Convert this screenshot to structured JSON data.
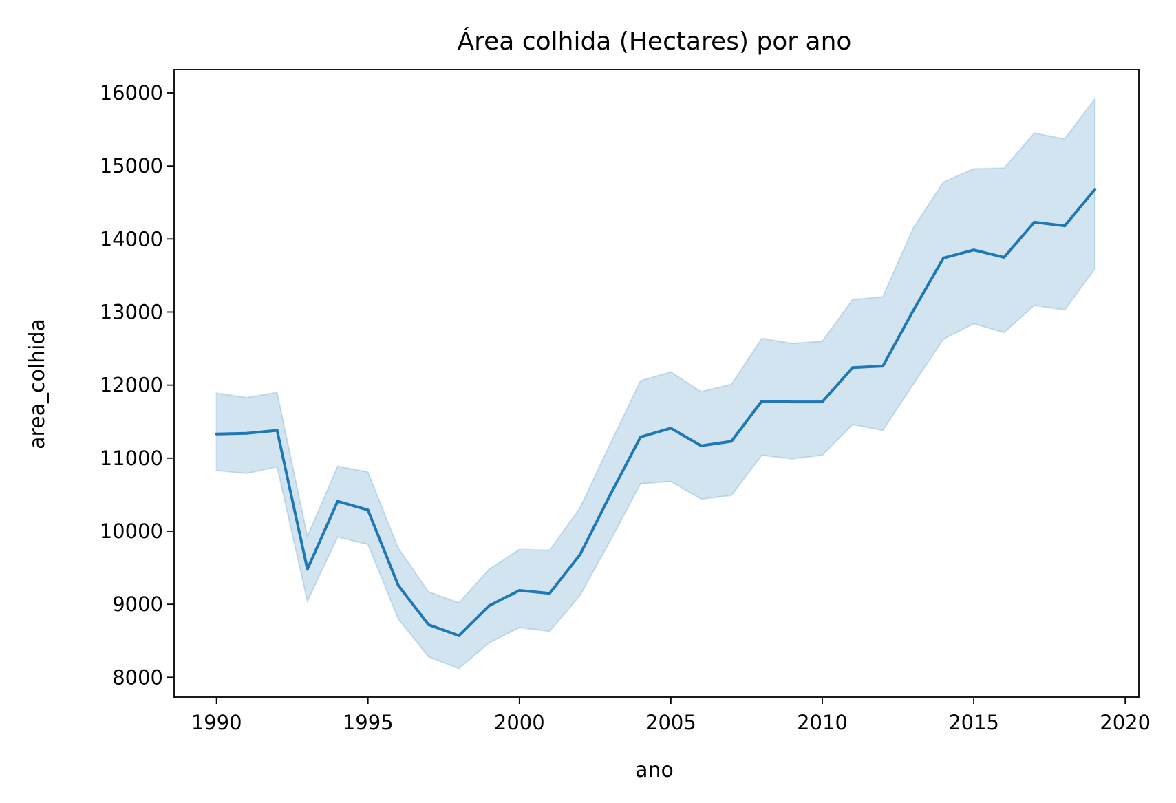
{
  "chart_data": {
    "type": "line",
    "title": "Área colhida (Hectares) por ano",
    "xlabel": "ano",
    "ylabel": "area_colhida",
    "xlim": [
      1988.6,
      2020.45
    ],
    "ylim": [
      7730,
      16320
    ],
    "x_ticks": [
      1990,
      1995,
      2000,
      2005,
      2010,
      2015,
      2020
    ],
    "y_ticks": [
      8000,
      9000,
      10000,
      11000,
      12000,
      13000,
      14000,
      15000,
      16000
    ],
    "grid": false,
    "legend": "none",
    "line_color": "#1f77b4",
    "band_color": "#1f77b4",
    "series": [
      {
        "x": [
          1990,
          1991,
          1992,
          1993,
          1994,
          1995,
          1996,
          1997,
          1998,
          1999,
          2000,
          2001,
          2002,
          2003,
          2004,
          2005,
          2006,
          2007,
          2008,
          2009,
          2010,
          2011,
          2012,
          2013,
          2014,
          2015,
          2016,
          2017,
          2018,
          2019
        ],
        "y": [
          11330,
          11340,
          11380,
          9480,
          10410,
          10290,
          9260,
          8720,
          8570,
          8980,
          9190,
          9150,
          9680,
          10500,
          11290,
          11410,
          11170,
          11230,
          11780,
          11770,
          11770,
          12240,
          12260,
          13020,
          13740,
          13850,
          13750,
          14230,
          14180,
          14680
        ],
        "ci_lower": [
          10830,
          10790,
          10880,
          9040,
          9920,
          9820,
          8800,
          8280,
          8120,
          8470,
          8680,
          8630,
          9120,
          9870,
          10650,
          10680,
          10440,
          10490,
          11040,
          10990,
          11040,
          11460,
          11380,
          12010,
          12630,
          12840,
          12720,
          13090,
          13030,
          13590
        ],
        "ci_upper": [
          11890,
          11830,
          11900,
          9930,
          10890,
          10810,
          9770,
          9170,
          9020,
          9480,
          9750,
          9740,
          10320,
          11200,
          12060,
          12180,
          11910,
          12010,
          12640,
          12570,
          12600,
          13170,
          13210,
          14150,
          14780,
          14960,
          14970,
          15450,
          15370,
          15920
        ]
      }
    ]
  }
}
